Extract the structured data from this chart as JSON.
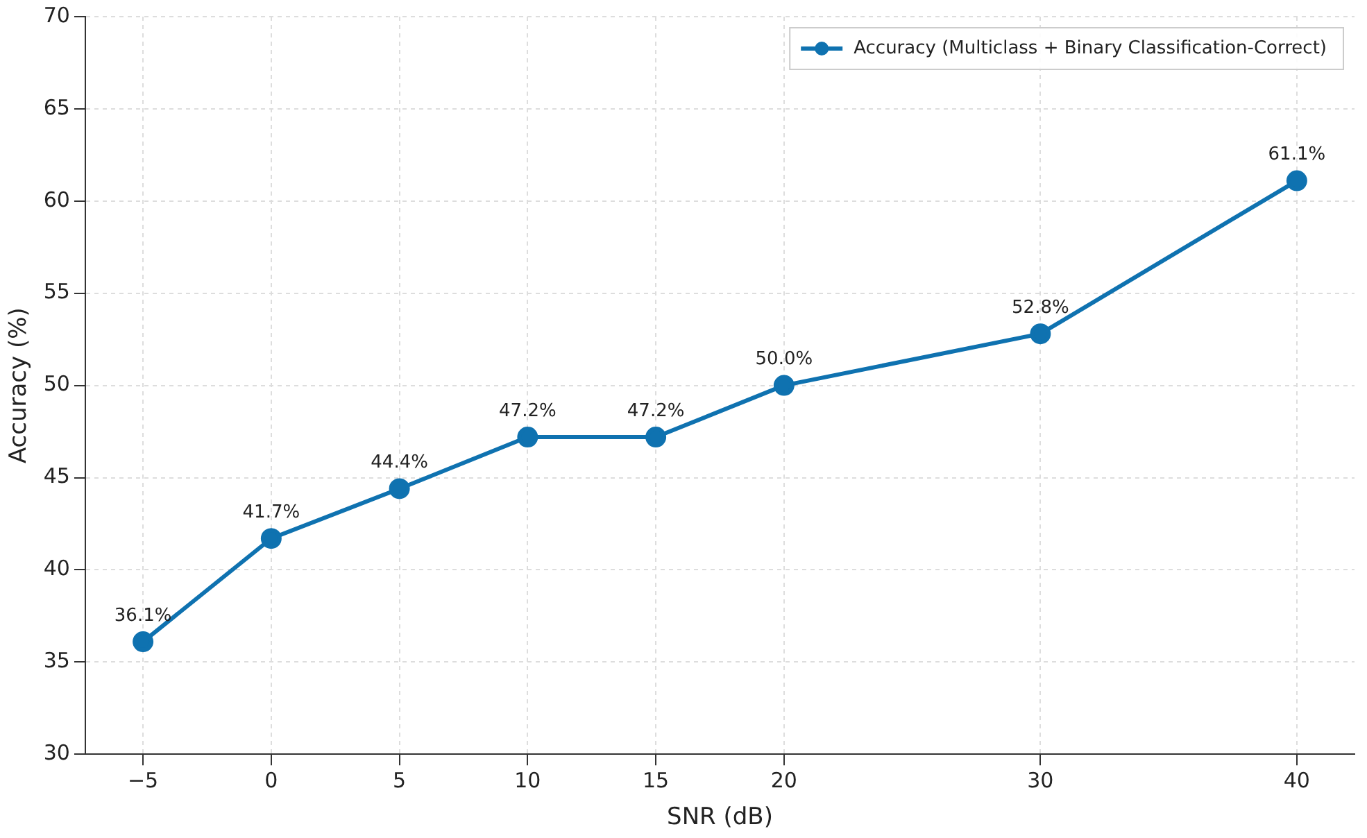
{
  "chart_data": {
    "type": "line",
    "xlabel": "SNR (dB)",
    "ylabel": "Accuracy (%)",
    "x": [
      -5,
      0,
      5,
      10,
      15,
      20,
      30,
      40
    ],
    "series": [
      {
        "name": "Accuracy (Multiclass + Binary Classification-Correct)",
        "color": "#0f72b0",
        "values": [
          36.1,
          41.7,
          44.4,
          47.2,
          47.2,
          50.0,
          52.8,
          61.1
        ],
        "value_labels": [
          "36.1%",
          "41.7%",
          "44.4%",
          "47.2%",
          "47.2%",
          "50.0%",
          "52.8%",
          "61.1%"
        ]
      }
    ],
    "xlim": [
      -7.25,
      42.25
    ],
    "xticks": [
      {
        "value": -5,
        "label": "−5"
      },
      0,
      5,
      10,
      15,
      20,
      30,
      40
    ],
    "ylim": [
      30,
      70
    ],
    "yticks": [
      30,
      35,
      40,
      45,
      50,
      55,
      60,
      65,
      70
    ],
    "grid": true,
    "legend": "top right",
    "marker": "circle",
    "line_style": "solid"
  }
}
